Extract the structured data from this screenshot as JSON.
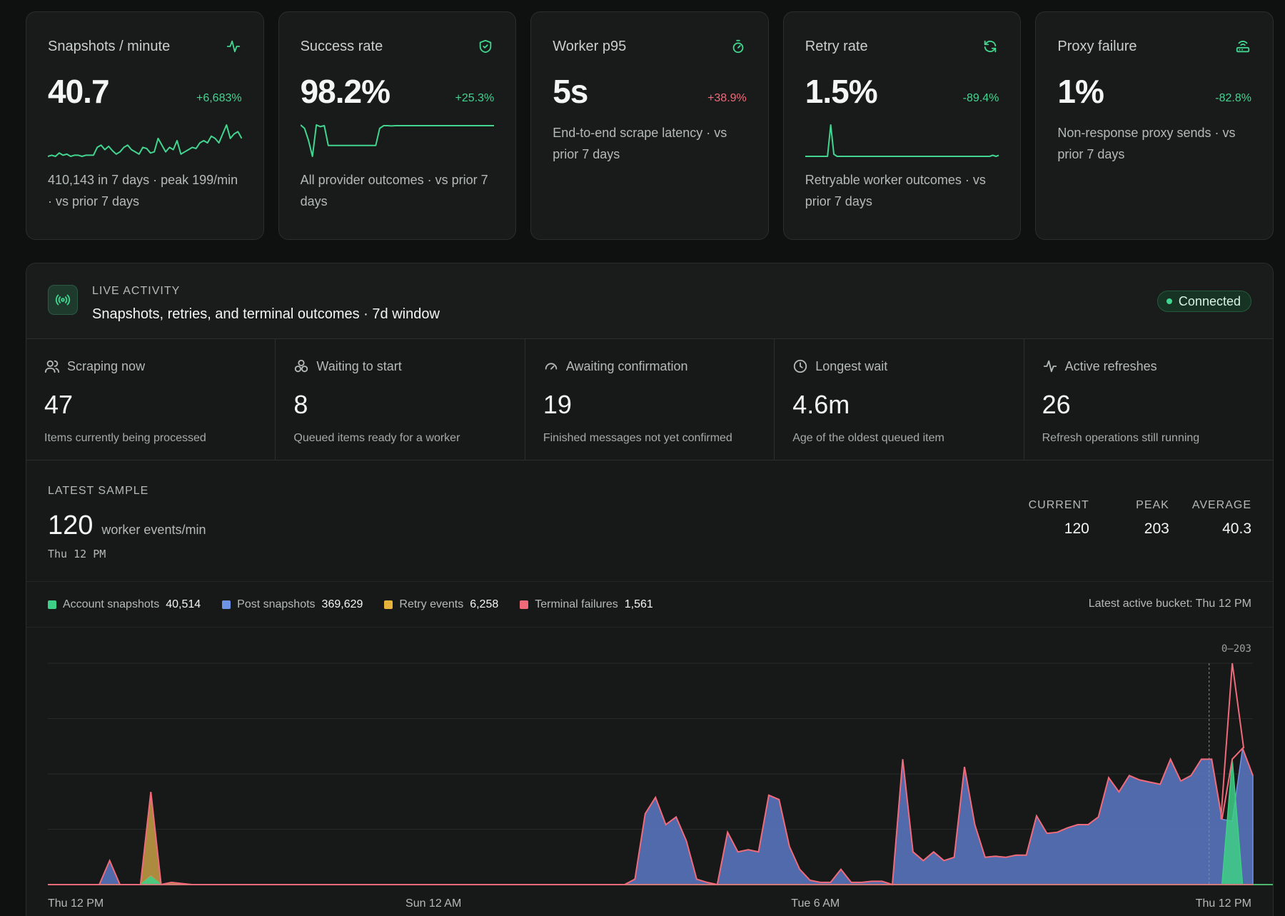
{
  "kpis": [
    {
      "title": "Snapshots / minute",
      "icon": "activity-icon",
      "value": "40.7",
      "delta": "+6,683%",
      "delta_tone": "up",
      "desc": "410,143 in 7 days · peak 199/min · vs prior 7 days",
      "spark": [
        2,
        3,
        2,
        5,
        3,
        4,
        2,
        3,
        3,
        2,
        3,
        3,
        3,
        10,
        12,
        8,
        11,
        7,
        4,
        6,
        10,
        12,
        8,
        6,
        4,
        10,
        9,
        5,
        6,
        18,
        12,
        6,
        10,
        8,
        16,
        4,
        6,
        8,
        10,
        9,
        14,
        16,
        14,
        20,
        18,
        14,
        22,
        30,
        18,
        22,
        24,
        18
      ]
    },
    {
      "title": "Success rate",
      "icon": "shield-check-icon",
      "value": "98.2%",
      "delta": "+25.3%",
      "delta_tone": "up",
      "desc": "All provider outcomes · vs prior 7 days",
      "spark": [
        100,
        90,
        55,
        8,
        100,
        95,
        98,
        40,
        40,
        40,
        40,
        40,
        40,
        40,
        40,
        40,
        40,
        40,
        40,
        40,
        90,
        98,
        98,
        97,
        98,
        98,
        98,
        98,
        98,
        98,
        98,
        98,
        98,
        98,
        98,
        98,
        98,
        98,
        98,
        98,
        98,
        98,
        98,
        98,
        98,
        98,
        98,
        98,
        98,
        98
      ]
    },
    {
      "title": "Worker p95",
      "icon": "timer-icon",
      "value": "5s",
      "delta": "+38.9%",
      "delta_tone": "bad",
      "desc": "End-to-end scrape latency · vs prior 7 days",
      "spark": []
    },
    {
      "title": "Retry rate",
      "icon": "refresh-icon",
      "value": "1.5%",
      "delta": "-89.4%",
      "delta_tone": "up",
      "desc": "Retryable worker outcomes · vs prior 7 days",
      "spark": [
        1,
        1,
        1,
        1,
        1,
        1,
        1,
        1,
        30,
        3,
        1,
        1,
        1,
        1,
        1,
        1,
        1,
        1,
        1,
        1,
        1,
        1,
        1,
        1,
        1,
        1,
        1,
        1,
        1,
        1,
        1,
        1,
        1,
        1,
        1,
        1,
        1,
        1,
        1,
        1,
        1,
        1,
        1,
        1,
        1,
        1,
        1,
        1,
        1,
        1,
        1,
        1,
        1,
        1,
        1,
        1,
        1,
        1,
        1,
        2,
        1,
        2
      ]
    },
    {
      "title": "Proxy failure",
      "icon": "router-icon",
      "value": "1%",
      "delta": "-82.8%",
      "delta_tone": "up",
      "desc": "Non-response proxy sends · vs prior 7 days",
      "spark": []
    }
  ],
  "live": {
    "kicker": "LIVE ACTIVITY",
    "title": "Snapshots, retries, and terminal outcomes · 7d window",
    "status": "Connected",
    "status_color": "#43d590"
  },
  "stats": [
    {
      "label": "Scraping now",
      "icon": "users-icon",
      "value": "47",
      "desc": "Items currently being processed"
    },
    {
      "label": "Waiting to start",
      "icon": "boxes-icon",
      "value": "8",
      "desc": "Queued items ready for a worker"
    },
    {
      "label": "Awaiting confirmation",
      "icon": "gauge-icon",
      "value": "19",
      "desc": "Finished messages not yet confirmed"
    },
    {
      "label": "Longest wait",
      "icon": "clock-icon",
      "value": "4.6m",
      "desc": "Age of the oldest queued item"
    },
    {
      "label": "Active refreshes",
      "icon": "activity-icon",
      "value": "26",
      "desc": "Refresh operations still running"
    }
  ],
  "sample": {
    "kicker": "LATEST SAMPLE",
    "value": "120",
    "unit": "worker events/min",
    "time": "Thu 12 PM",
    "summary": [
      {
        "label": "CURRENT",
        "value": "120"
      },
      {
        "label": "PEAK",
        "value": "203"
      },
      {
        "label": "AVERAGE",
        "value": "40.3"
      }
    ]
  },
  "legend": [
    {
      "label": "Account snapshots",
      "count": "40,514",
      "color": "#3ecf86"
    },
    {
      "label": "Post snapshots",
      "count": "369,629",
      "color": "#6f93e6"
    },
    {
      "label": "Retry events",
      "count": "6,258",
      "color": "#e6b43c"
    },
    {
      "label": "Terminal failures",
      "count": "1,561",
      "color": "#f06a7a"
    }
  ],
  "latest_bucket": "Latest active bucket: Thu 12 PM",
  "chart_data": {
    "type": "area",
    "range_label": "0–203",
    "ylim": [
      0,
      203
    ],
    "x_labels": [
      "Thu 12 PM",
      "Sun 12 AM",
      "Tue 6 AM",
      "Thu 12 PM"
    ],
    "series": [
      {
        "name": "Post snapshots",
        "color": "#6f93e6",
        "values": [
          0,
          0,
          0,
          0,
          0,
          0,
          22,
          0,
          0,
          0,
          8,
          0,
          0,
          0,
          0,
          0,
          0,
          0,
          0,
          0,
          0,
          0,
          0,
          0,
          0,
          0,
          0,
          0,
          0,
          0,
          0,
          0,
          0,
          0,
          0,
          0,
          0,
          0,
          0,
          0,
          0,
          0,
          0,
          0,
          0,
          0,
          0,
          0,
          0,
          0,
          0,
          0,
          0,
          0,
          0,
          0,
          0,
          5,
          65,
          80,
          55,
          62,
          40,
          5,
          2,
          0,
          48,
          30,
          32,
          30,
          82,
          78,
          35,
          14,
          4,
          2,
          2,
          14,
          2,
          2,
          3,
          3,
          0,
          115,
          30,
          22,
          30,
          22,
          25,
          108,
          55,
          25,
          26,
          25,
          27,
          27,
          63,
          47,
          48,
          52,
          55,
          55,
          62,
          98,
          85,
          100,
          96,
          94,
          92,
          115,
          95,
          100,
          115,
          115,
          60,
          58,
          125,
          100
        ]
      },
      {
        "name": "Account snapshots",
        "color": "#3ecf86",
        "values": [
          0,
          0,
          0,
          0,
          0,
          0,
          0,
          0,
          0,
          0,
          7,
          0,
          0,
          0,
          0,
          0,
          0,
          0,
          0,
          0,
          0,
          0,
          0,
          0,
          0,
          0,
          0,
          0,
          0,
          0,
          0,
          0,
          0,
          0,
          0,
          0,
          0,
          0,
          0,
          0,
          0,
          0,
          0,
          0,
          0,
          0,
          0,
          0,
          0,
          0,
          0,
          0,
          0,
          0,
          0,
          0,
          0,
          0,
          0,
          0,
          0,
          0,
          0,
          0,
          0,
          0,
          0,
          0,
          0,
          0,
          0,
          0,
          0,
          0,
          0,
          0,
          0,
          0,
          0,
          0,
          0,
          0,
          0,
          0,
          0,
          0,
          0,
          0,
          0,
          0,
          0,
          0,
          0,
          0,
          0,
          0,
          0,
          0,
          0,
          0,
          0,
          0,
          0,
          0,
          0,
          0,
          0,
          0,
          0,
          0,
          0,
          0,
          0,
          0,
          0,
          115,
          0,
          0,
          0,
          0,
          0,
          0
        ]
      },
      {
        "name": "Retry events",
        "color": "#e6b43c",
        "values": [
          0,
          0,
          0,
          0,
          0,
          0,
          0,
          0,
          0,
          0,
          85,
          0,
          2,
          1,
          0,
          0,
          0,
          0,
          0,
          0,
          0,
          0,
          0,
          0,
          0,
          0,
          0,
          0,
          0,
          0,
          0,
          0,
          0,
          0,
          0,
          0,
          0,
          0,
          0,
          0,
          0,
          0,
          0,
          0,
          0,
          0,
          0,
          0,
          0,
          0,
          0,
          0,
          0,
          0,
          0,
          0,
          0,
          0,
          0,
          0,
          0,
          0,
          0,
          0,
          0,
          0,
          0,
          0,
          0,
          0,
          0,
          0,
          0,
          0,
          0,
          0,
          0,
          0,
          0,
          0,
          0,
          0,
          0,
          0,
          0,
          0,
          0,
          0,
          0,
          0,
          0,
          0,
          0,
          0,
          0,
          0,
          0,
          0,
          0,
          0,
          0,
          0,
          0,
          0,
          0,
          0,
          0,
          0,
          0,
          0,
          0,
          0,
          0,
          0,
          0,
          0,
          0,
          0,
          0,
          0,
          0,
          0
        ]
      },
      {
        "name": "Terminal failures",
        "color": "#f06a7a",
        "values": [
          0,
          0,
          0,
          0,
          0,
          0,
          0,
          0,
          0,
          0,
          0,
          0,
          0,
          0,
          0,
          0,
          0,
          0,
          0,
          0,
          0,
          0,
          0,
          0,
          0,
          0,
          0,
          0,
          0,
          0,
          0,
          0,
          0,
          0,
          0,
          0,
          0,
          0,
          0,
          0,
          0,
          0,
          0,
          0,
          0,
          0,
          0,
          0,
          0,
          0,
          0,
          0,
          0,
          0,
          0,
          0,
          0,
          0,
          0,
          0,
          0,
          0,
          0,
          0,
          0,
          0,
          0,
          0,
          0,
          0,
          0,
          0,
          0,
          0,
          0,
          0,
          0,
          0,
          0,
          0,
          0,
          0,
          0,
          0,
          0,
          0,
          0,
          0,
          0,
          0,
          0,
          0,
          0,
          0,
          0,
          0,
          0,
          0,
          0,
          0,
          0,
          0,
          0,
          0,
          0,
          0,
          0,
          0,
          0,
          0,
          0,
          0,
          0,
          0,
          0,
          88,
          0,
          0,
          0,
          0,
          0,
          0
        ]
      }
    ],
    "marker_index": 114
  }
}
